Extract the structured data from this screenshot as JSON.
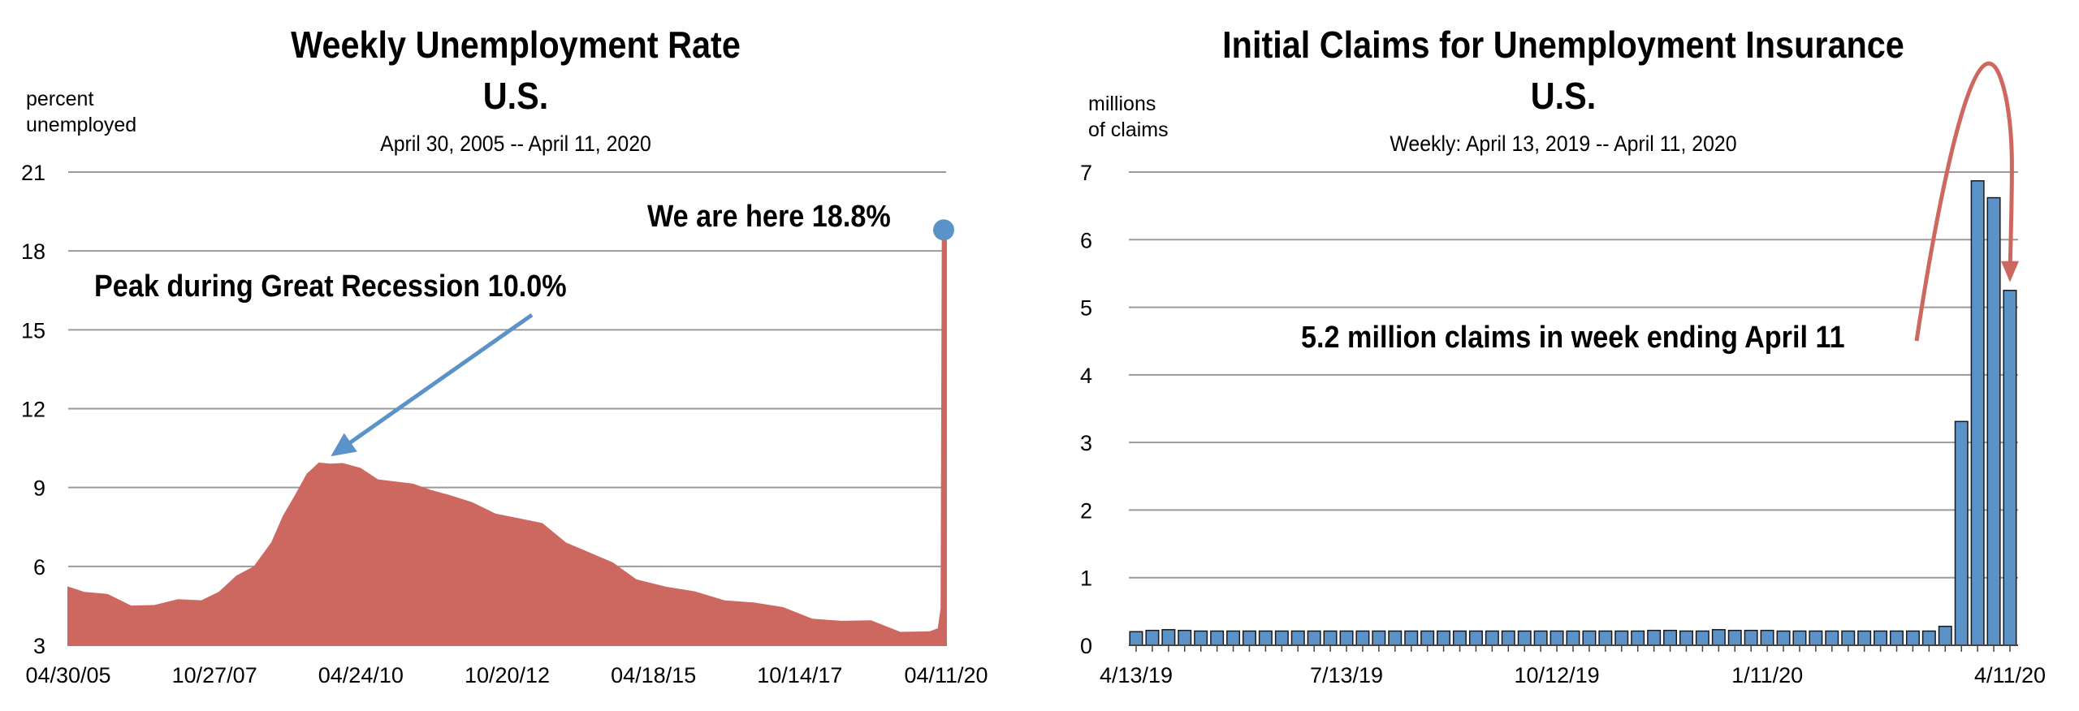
{
  "chart_data": [
    {
      "type": "area",
      "title": "Weekly Unemployment Rate",
      "title_line2": "U.S.",
      "subtitle": "April 30, 2005 -- April 11, 2020",
      "ylabel_line1": "percent",
      "ylabel_line2": "unemployed",
      "ylim": [
        3,
        21
      ],
      "yticks": [
        "21",
        "18",
        "15",
        "12",
        "9",
        "6",
        "3"
      ],
      "xticks": [
        "04/30/05",
        "10/27/07",
        "04/24/10",
        "10/20/12",
        "04/18/15",
        "10/14/17",
        "04/11/20"
      ],
      "grid": true,
      "series": [
        {
          "color": "#cd6860",
          "x": [
            2005.33,
            2005.6,
            2006.0,
            2006.4,
            2006.8,
            2007.2,
            2007.6,
            2007.9,
            2008.2,
            2008.5,
            2008.8,
            2009.0,
            2009.2,
            2009.4,
            2009.6,
            2009.8,
            2010.0,
            2010.3,
            2010.6,
            2010.9,
            2011.2,
            2011.5,
            2011.8,
            2012.2,
            2012.6,
            2013.0,
            2013.4,
            2013.8,
            2014.2,
            2014.6,
            2015.0,
            2015.5,
            2016.0,
            2016.5,
            2017.0,
            2017.5,
            2018.0,
            2018.5,
            2019.0,
            2019.5,
            2020.0,
            2020.15,
            2020.2,
            2020.22,
            2020.25,
            2020.28
          ],
          "values": [
            5.2,
            5.0,
            4.8,
            4.6,
            4.5,
            4.6,
            4.8,
            5.0,
            5.5,
            6.1,
            6.9,
            7.8,
            8.8,
            9.5,
            9.8,
            10.0,
            9.9,
            9.6,
            9.4,
            9.2,
            9.0,
            9.0,
            8.7,
            8.3,
            8.1,
            7.8,
            7.5,
            7.0,
            6.5,
            6.0,
            5.6,
            5.2,
            4.9,
            4.8,
            4.6,
            4.3,
            4.1,
            3.9,
            3.8,
            3.6,
            3.5,
            3.5,
            4.4,
            18.8,
            18.8,
            18.8
          ]
        }
      ],
      "annotations": [
        {
          "text": "We are here 18.8%",
          "x": 2020.28,
          "y": 18.8
        },
        {
          "text": "Peak during Great Recession 10.0%",
          "x": 2009.8,
          "y": 10.0
        }
      ]
    },
    {
      "type": "bar",
      "title": "Initial Claims for Unemployment Insurance",
      "title_line2": "U.S.",
      "subtitle": "Weekly: April 13, 2019 -- April 11, 2020",
      "ylabel_line1": "millions",
      "ylabel_line2": "of claims",
      "ylim": [
        0,
        7
      ],
      "yticks": [
        "7",
        "6",
        "5",
        "4",
        "3",
        "2",
        "1",
        "0"
      ],
      "xticks": [
        "4/13/19",
        "7/13/19",
        "10/12/19",
        "1/11/20",
        "4/11/20"
      ],
      "grid": true,
      "series": [
        {
          "color": "#5b93c9",
          "values": [
            0.2,
            0.22,
            0.23,
            0.22,
            0.21,
            0.21,
            0.21,
            0.21,
            0.21,
            0.21,
            0.21,
            0.21,
            0.21,
            0.21,
            0.21,
            0.21,
            0.21,
            0.21,
            0.21,
            0.21,
            0.21,
            0.21,
            0.21,
            0.21,
            0.21,
            0.21,
            0.21,
            0.21,
            0.21,
            0.21,
            0.21,
            0.21,
            0.22,
            0.22,
            0.21,
            0.21,
            0.23,
            0.22,
            0.22,
            0.22,
            0.21,
            0.21,
            0.21,
            0.21,
            0.21,
            0.21,
            0.21,
            0.21,
            0.21,
            0.21,
            0.28,
            3.31,
            6.87,
            6.62,
            5.25
          ]
        }
      ],
      "annotations": [
        {
          "text": "5.2 million claims in week ending April 11",
          "x": "4/11/20",
          "y": 5.2
        }
      ]
    }
  ]
}
